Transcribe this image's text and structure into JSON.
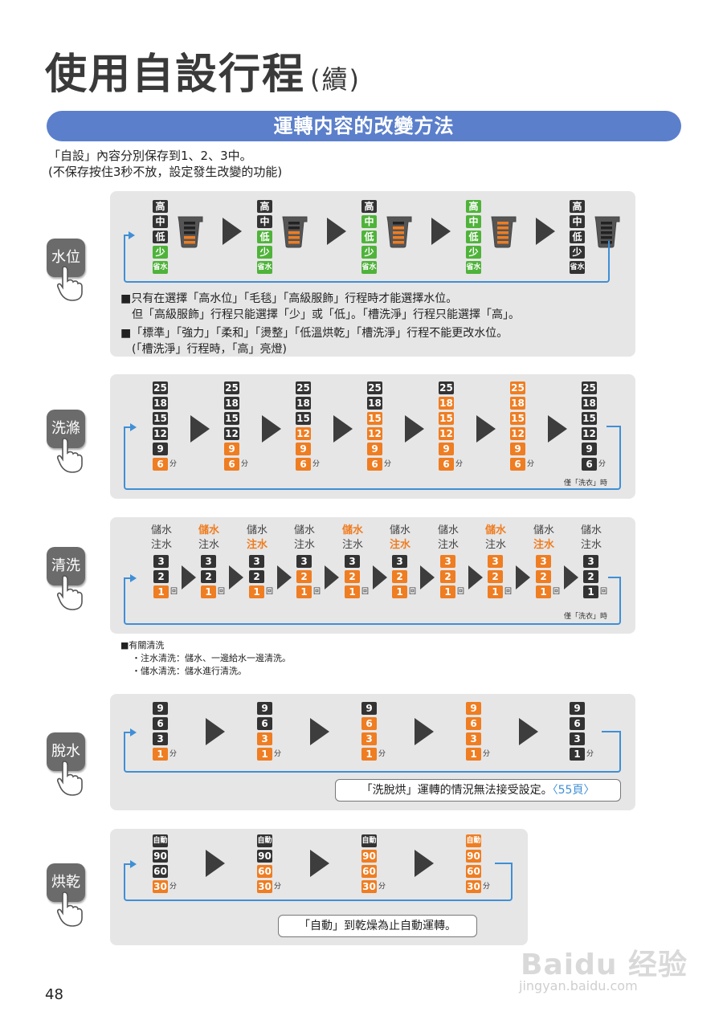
{
  "title": {
    "main": "使用自設行程",
    "sub": "(續)"
  },
  "banner": "運轉内容的改變方法",
  "intro": [
    "「自設」內容分別保存到1、2、3中。",
    "(不保存按住3秒不放，設定發生改變的功能)"
  ],
  "water": {
    "label": "水位",
    "levels": [
      "高",
      "中",
      "低",
      "少",
      "省水"
    ],
    "notes": [
      "■只有在選擇「高水位」「毛毯」「高級服飾」行程時才能選擇水位。",
      "　但「高級服飾」行程只能選擇「少」或「低」。「槽洗淨」行程只能選擇「高」。",
      "■「標準」「強力」「柔和」「燙整」「低溫烘乾」「槽洗淨」行程不能更改水位。",
      "　(「槽洗淨」行程時，「高」亮燈)"
    ]
  },
  "wash": {
    "label": "洗滌",
    "values": [
      "25",
      "18",
      "15",
      "12",
      "9",
      "6"
    ],
    "unit": "分",
    "note": "僅「洗衣」時"
  },
  "rinse": {
    "label": "清洗",
    "modes": [
      "儲水",
      "注水"
    ],
    "counts": [
      "3",
      "2",
      "1"
    ],
    "unit": "回",
    "note": "僅「洗衣」時",
    "about": [
      "■有關清洗",
      "・注水清洗：儲水、一邊給水一邊清洗。",
      "・儲水清洗：儲水進行清洗。"
    ]
  },
  "spin": {
    "label": "脫水",
    "values": [
      "9",
      "6",
      "3",
      "1"
    ],
    "unit": "分",
    "note": "「洗脫烘」運轉的情況無法接受設定。",
    "link": "〈55頁〉"
  },
  "dry": {
    "label": "烘乾",
    "values": [
      "自動",
      "90",
      "60",
      "30"
    ],
    "unit": "分",
    "note": "「自動」到乾燥為止自動運轉。"
  },
  "page_number": "48",
  "watermark": {
    "logo": "Baidu 经验",
    "url": "jingyan.baidu.com"
  },
  "colors": {
    "accent": "#5b7fcb",
    "orange": "#ef7d22",
    "green": "#4fb33a",
    "loop": "#3f8fd6"
  }
}
